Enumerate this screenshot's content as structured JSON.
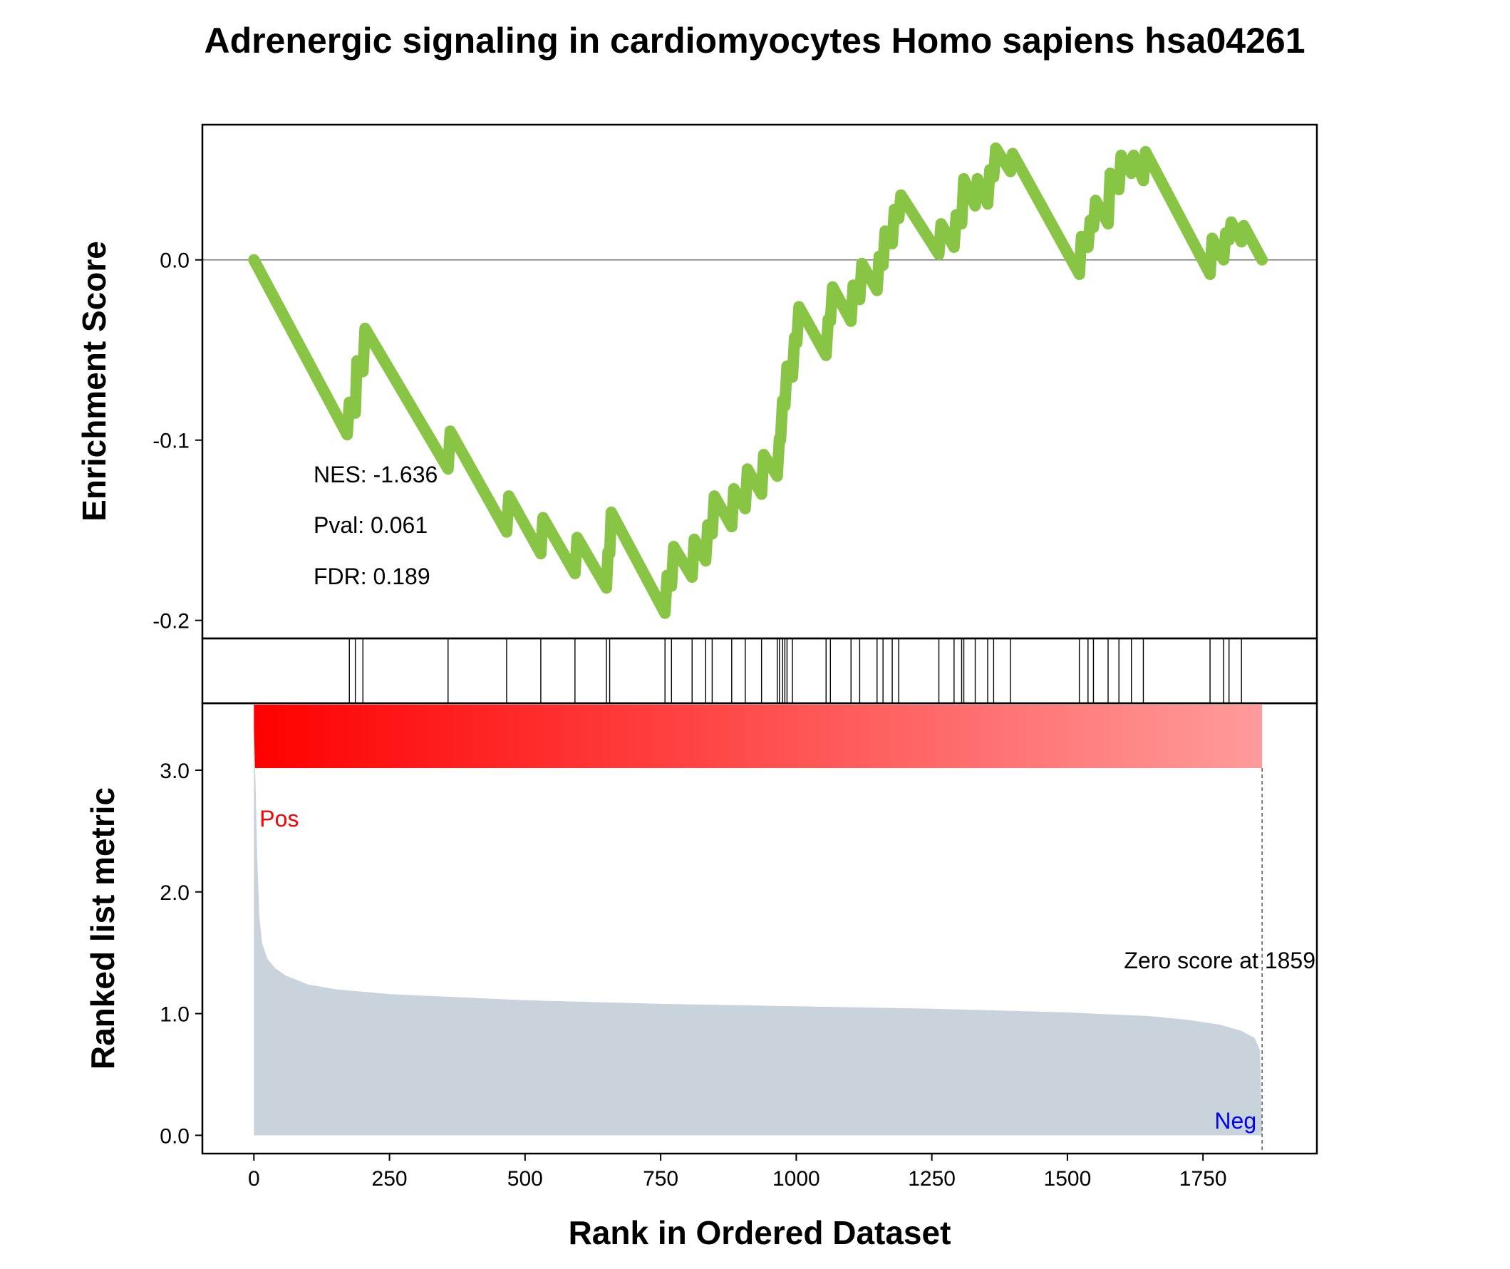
{
  "title": "Adrenergic signaling in cardiomyocytes Homo sapiens hsa04261",
  "chart_data": {
    "type": "line",
    "title": "Adrenergic signaling in cardiomyocytes Homo sapiens hsa04261",
    "xlabel": "Rank in Ordered Dataset",
    "xlim": [
      -95,
      1960
    ],
    "x_ticks": [
      "0",
      "250",
      "500",
      "750",
      "1000",
      "1250",
      "1500",
      "1750"
    ],
    "enrichment": {
      "ylabel": "Enrichment Score",
      "ylim": [
        -0.21,
        0.075
      ],
      "y_ticks": [
        "0.0",
        "-0.1",
        "-0.2"
      ],
      "color": "#88c544",
      "points": [
        [
          0,
          0.0
        ],
        [
          172,
          -0.097
        ],
        [
          176,
          -0.079
        ],
        [
          187,
          -0.085
        ],
        [
          190,
          -0.056
        ],
        [
          201,
          -0.062
        ],
        [
          205,
          -0.038
        ],
        [
          358,
          -0.116
        ],
        [
          362,
          -0.095
        ],
        [
          466,
          -0.151
        ],
        [
          470,
          -0.131
        ],
        [
          529,
          -0.163
        ],
        [
          533,
          -0.143
        ],
        [
          592,
          -0.174
        ],
        [
          596,
          -0.154
        ],
        [
          650,
          -0.182
        ],
        [
          653,
          -0.162
        ],
        [
          656,
          -0.163
        ],
        [
          659,
          -0.14
        ],
        [
          758,
          -0.196
        ],
        [
          762,
          -0.175
        ],
        [
          770,
          -0.181
        ],
        [
          774,
          -0.159
        ],
        [
          808,
          -0.176
        ],
        [
          812,
          -0.155
        ],
        [
          833,
          -0.167
        ],
        [
          837,
          -0.147
        ],
        [
          845,
          -0.152
        ],
        [
          849,
          -0.131
        ],
        [
          881,
          -0.148
        ],
        [
          885,
          -0.127
        ],
        [
          906,
          -0.138
        ],
        [
          910,
          -0.116
        ],
        [
          936,
          -0.13
        ],
        [
          940,
          -0.108
        ],
        [
          965,
          -0.12
        ],
        [
          969,
          -0.099
        ],
        [
          971,
          -0.1
        ],
        [
          975,
          -0.078
        ],
        [
          979,
          -0.081
        ],
        [
          983,
          -0.059
        ],
        [
          993,
          -0.065
        ],
        [
          997,
          -0.043
        ],
        [
          1001,
          -0.046
        ],
        [
          1005,
          -0.026
        ],
        [
          1055,
          -0.053
        ],
        [
          1059,
          -0.033
        ],
        [
          1063,
          -0.034
        ],
        [
          1067,
          -0.015
        ],
        [
          1101,
          -0.034
        ],
        [
          1105,
          -0.014
        ],
        [
          1117,
          -0.022
        ],
        [
          1121,
          -0.002
        ],
        [
          1149,
          -0.017
        ],
        [
          1153,
          0.002
        ],
        [
          1160,
          -0.003
        ],
        [
          1164,
          0.016
        ],
        [
          1177,
          0.009
        ],
        [
          1181,
          0.028
        ],
        [
          1189,
          0.023
        ],
        [
          1193,
          0.036
        ],
        [
          1263,
          0.003
        ],
        [
          1267,
          0.02
        ],
        [
          1291,
          0.007
        ],
        [
          1295,
          0.025
        ],
        [
          1305,
          0.02
        ],
        [
          1309,
          0.045
        ],
        [
          1330,
          0.03
        ],
        [
          1334,
          0.045
        ],
        [
          1353,
          0.031
        ],
        [
          1357,
          0.05
        ],
        [
          1364,
          0.046
        ],
        [
          1368,
          0.062
        ],
        [
          1395,
          0.049
        ],
        [
          1399,
          0.059
        ],
        [
          1522,
          -0.008
        ],
        [
          1526,
          0.013
        ],
        [
          1538,
          0.007
        ],
        [
          1542,
          0.022
        ],
        [
          1548,
          0.018
        ],
        [
          1552,
          0.033
        ],
        [
          1575,
          0.02
        ],
        [
          1579,
          0.048
        ],
        [
          1595,
          0.039
        ],
        [
          1599,
          0.058
        ],
        [
          1618,
          0.048
        ],
        [
          1622,
          0.058
        ],
        [
          1640,
          0.044
        ],
        [
          1644,
          0.06
        ],
        [
          1763,
          -0.008
        ],
        [
          1767,
          0.012
        ],
        [
          1788,
          0.0
        ],
        [
          1792,
          0.015
        ],
        [
          1798,
          0.011
        ],
        [
          1802,
          0.021
        ],
        [
          1821,
          0.01
        ],
        [
          1825,
          0.019
        ],
        [
          1859,
          0.0
        ]
      ],
      "annotations": [
        "NES: -1.636",
        "Pval: 0.061",
        "FDR: 0.189"
      ]
    },
    "hits": [
      176,
      187,
      201,
      358,
      466,
      529,
      592,
      650,
      656,
      758,
      770,
      808,
      833,
      845,
      881,
      906,
      936,
      965,
      969,
      975,
      979,
      983,
      993,
      1055,
      1063,
      1101,
      1117,
      1149,
      1160,
      1177,
      1189,
      1263,
      1291,
      1305,
      1309,
      1330,
      1353,
      1364,
      1395,
      1522,
      1538,
      1548,
      1575,
      1595,
      1618,
      1640,
      1763,
      1788,
      1798,
      1821
    ],
    "heatbar": {
      "from": "#ff0000",
      "to": "#ff9b9b",
      "range": [
        0,
        1859
      ]
    },
    "ranked_metric": {
      "ylabel": "Ranked list metric",
      "ylim": [
        -0.15,
        3.55
      ],
      "y_ticks": [
        "0.0",
        "1.0",
        "2.0",
        "3.0"
      ],
      "fill_color": "#c9d3dc",
      "points": [
        [
          0,
          3.35
        ],
        [
          3,
          2.9
        ],
        [
          6,
          2.3
        ],
        [
          10,
          1.8
        ],
        [
          15,
          1.58
        ],
        [
          25,
          1.45
        ],
        [
          40,
          1.37
        ],
        [
          60,
          1.31
        ],
        [
          100,
          1.24
        ],
        [
          150,
          1.2
        ],
        [
          250,
          1.16
        ],
        [
          400,
          1.13
        ],
        [
          500,
          1.11
        ],
        [
          750,
          1.08
        ],
        [
          1000,
          1.06
        ],
        [
          1250,
          1.04
        ],
        [
          1500,
          1.01
        ],
        [
          1650,
          0.98
        ],
        [
          1720,
          0.95
        ],
        [
          1780,
          0.91
        ],
        [
          1820,
          0.86
        ],
        [
          1845,
          0.8
        ],
        [
          1855,
          0.7
        ],
        [
          1859,
          0.0
        ]
      ],
      "zero_score_rank": 1859,
      "zero_label": "Zero score at 1859",
      "pos_label": "Pos",
      "neg_label": "Neg",
      "pos_color": "#ff0000",
      "neg_color": "#0000ff"
    }
  }
}
